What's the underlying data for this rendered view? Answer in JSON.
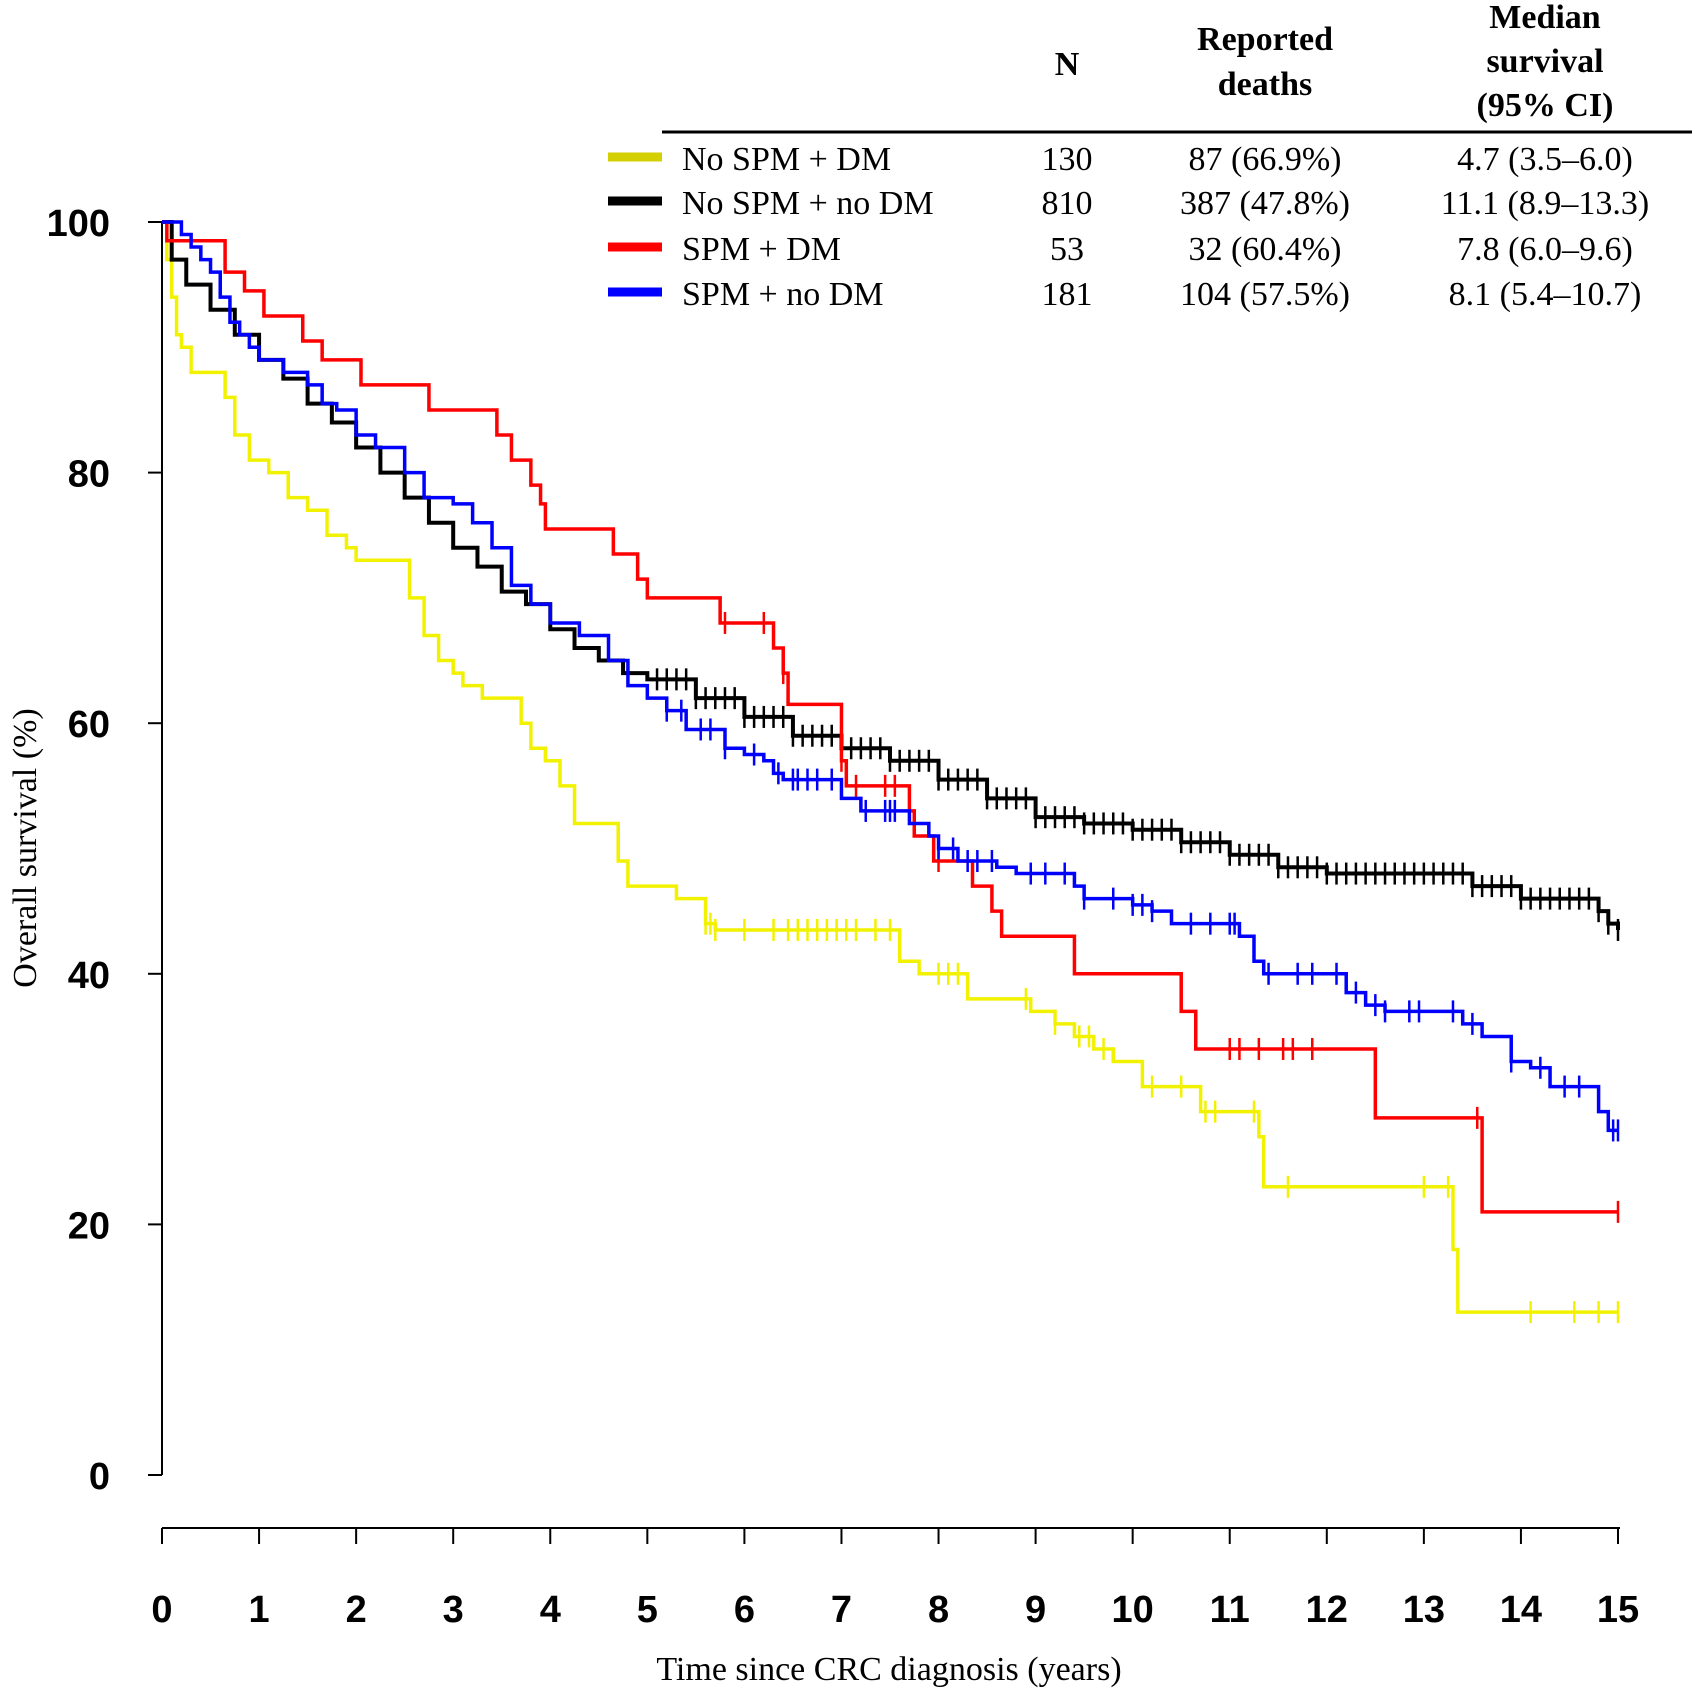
{
  "chart_data": {
    "type": "line",
    "subtype": "kaplan-meier",
    "xlabel": "Time since CRC diagnosis (years)",
    "ylabel": "Overall survival (%)",
    "xlim": [
      0,
      15
    ],
    "ylim": [
      0,
      100
    ],
    "x_ticks": [
      "0",
      "1",
      "2",
      "3",
      "4",
      "5",
      "6",
      "7",
      "8",
      "9",
      "10",
      "11",
      "12",
      "13",
      "14",
      "15"
    ],
    "y_ticks": [
      "0",
      "20",
      "40",
      "60",
      "80",
      "100"
    ],
    "legend_headers": {
      "n": "N",
      "deaths_line1": "Reported",
      "deaths_line2": "deaths",
      "median_line1": "Median",
      "median_line2": "survival",
      "median_line3": "(95% CI)"
    },
    "series": [
      {
        "name": "No SPM + DM",
        "color": "#f2f200",
        "legend_color": "#d4cf00",
        "n": "130",
        "deaths": "87 (66.9%)",
        "median": "4.7 (3.5–6.0)",
        "points": [
          [
            0,
            100
          ],
          [
            0.05,
            97
          ],
          [
            0.1,
            94
          ],
          [
            0.15,
            91
          ],
          [
            0.2,
            90
          ],
          [
            0.3,
            88
          ],
          [
            0.55,
            88
          ],
          [
            0.65,
            86
          ],
          [
            0.75,
            83
          ],
          [
            0.9,
            81
          ],
          [
            1.1,
            80
          ],
          [
            1.3,
            78
          ],
          [
            1.5,
            77
          ],
          [
            1.7,
            75
          ],
          [
            1.9,
            74
          ],
          [
            2.0,
            73
          ],
          [
            2.45,
            73
          ],
          [
            2.55,
            70
          ],
          [
            2.7,
            67
          ],
          [
            2.85,
            65
          ],
          [
            3.0,
            64
          ],
          [
            3.1,
            63
          ],
          [
            3.3,
            62
          ],
          [
            3.6,
            62
          ],
          [
            3.7,
            60
          ],
          [
            3.8,
            58
          ],
          [
            3.95,
            57
          ],
          [
            4.1,
            55
          ],
          [
            4.25,
            52
          ],
          [
            4.6,
            52
          ],
          [
            4.7,
            49
          ],
          [
            4.8,
            47
          ],
          [
            5.0,
            47
          ],
          [
            5.3,
            46
          ],
          [
            5.6,
            44
          ],
          [
            5.7,
            43.5
          ],
          [
            7.4,
            43.5
          ],
          [
            7.6,
            41
          ],
          [
            7.8,
            40
          ],
          [
            8.2,
            40
          ],
          [
            8.3,
            38
          ],
          [
            8.6,
            38
          ],
          [
            8.95,
            37
          ],
          [
            9.2,
            36
          ],
          [
            9.4,
            35
          ],
          [
            9.6,
            34
          ],
          [
            9.8,
            33
          ],
          [
            10.1,
            31
          ],
          [
            10.6,
            31
          ],
          [
            10.7,
            29
          ],
          [
            11.15,
            29
          ],
          [
            11.3,
            27
          ],
          [
            11.35,
            23
          ],
          [
            13.2,
            23
          ],
          [
            13.3,
            18
          ],
          [
            13.35,
            13
          ],
          [
            15.0,
            13
          ]
        ],
        "censor_x": [
          5.6,
          5.65,
          5.7,
          6.0,
          6.3,
          6.45,
          6.55,
          6.65,
          6.75,
          6.85,
          6.95,
          7.05,
          7.15,
          7.35,
          7.5,
          8.0,
          8.1,
          8.2,
          8.9,
          9.2,
          9.45,
          9.55,
          9.7,
          10.2,
          10.5,
          10.75,
          10.85,
          11.25,
          11.6,
          13.0,
          13.25,
          14.1,
          14.55,
          14.8,
          15.0
        ]
      },
      {
        "name": "No SPM + no DM",
        "color": "#000000",
        "legend_color": "#000000",
        "n": "810",
        "deaths": "387 (47.8%)",
        "median": "11.1 (8.9–13.3)",
        "points": [
          [
            0,
            100
          ],
          [
            0.1,
            97
          ],
          [
            0.25,
            95
          ],
          [
            0.5,
            93
          ],
          [
            0.75,
            91
          ],
          [
            1.0,
            89
          ],
          [
            1.25,
            87.5
          ],
          [
            1.5,
            85.5
          ],
          [
            1.75,
            84
          ],
          [
            2.0,
            82
          ],
          [
            2.25,
            80
          ],
          [
            2.5,
            78
          ],
          [
            2.75,
            76
          ],
          [
            3.0,
            74
          ],
          [
            3.25,
            72.5
          ],
          [
            3.5,
            70.5
          ],
          [
            3.75,
            69.5
          ],
          [
            4.0,
            67.5
          ],
          [
            4.25,
            66
          ],
          [
            4.5,
            65
          ],
          [
            4.75,
            64
          ],
          [
            5.0,
            63.5
          ],
          [
            5.5,
            62
          ],
          [
            6.0,
            60.5
          ],
          [
            6.5,
            59
          ],
          [
            7.0,
            58
          ],
          [
            7.5,
            57
          ],
          [
            8.0,
            55.5
          ],
          [
            8.5,
            54
          ],
          [
            9.0,
            52.5
          ],
          [
            9.5,
            52
          ],
          [
            10.0,
            51.5
          ],
          [
            10.5,
            50.5
          ],
          [
            11.0,
            49.5
          ],
          [
            11.5,
            48.5
          ],
          [
            12.0,
            48
          ],
          [
            13.0,
            48
          ],
          [
            13.5,
            47
          ],
          [
            14.0,
            46
          ],
          [
            14.6,
            46
          ],
          [
            14.8,
            45
          ],
          [
            14.9,
            44
          ],
          [
            15.0,
            43.5
          ]
        ],
        "censor_x": [
          5.1,
          5.2,
          5.3,
          5.4,
          5.5,
          5.6,
          5.7,
          5.8,
          5.9,
          6.0,
          6.1,
          6.2,
          6.3,
          6.4,
          6.5,
          6.6,
          6.7,
          6.8,
          6.9,
          7.0,
          7.1,
          7.2,
          7.3,
          7.4,
          7.5,
          7.6,
          7.7,
          7.8,
          7.9,
          8.0,
          8.1,
          8.2,
          8.3,
          8.4,
          8.5,
          8.6,
          8.7,
          8.8,
          8.9,
          9.0,
          9.1,
          9.2,
          9.3,
          9.4,
          9.5,
          9.6,
          9.7,
          9.8,
          9.9,
          10.0,
          10.1,
          10.2,
          10.3,
          10.4,
          10.5,
          10.6,
          10.7,
          10.8,
          10.9,
          11.0,
          11.1,
          11.2,
          11.3,
          11.4,
          11.5,
          11.6,
          11.7,
          11.8,
          11.9,
          12.0,
          12.1,
          12.2,
          12.3,
          12.4,
          12.5,
          12.6,
          12.7,
          12.8,
          12.9,
          13.0,
          13.1,
          13.2,
          13.3,
          13.4,
          13.5,
          13.6,
          13.7,
          13.8,
          13.9,
          14.0,
          14.1,
          14.2,
          14.3,
          14.4,
          14.5,
          14.6,
          14.7,
          14.8,
          14.9,
          15.0
        ]
      },
      {
        "name": "SPM + DM",
        "color": "#ff0000",
        "legend_color": "#ff0000",
        "n": "53",
        "deaths": "32 (60.4%)",
        "median": "7.8 (6.0–9.6)",
        "points": [
          [
            0,
            100
          ],
          [
            0.05,
            98.5
          ],
          [
            0.65,
            98.5
          ],
          [
            0.65,
            96
          ],
          [
            0.85,
            96
          ],
          [
            0.85,
            94.5
          ],
          [
            1.05,
            94.5
          ],
          [
            1.05,
            92.5
          ],
          [
            1.45,
            92.5
          ],
          [
            1.45,
            90.5
          ],
          [
            1.65,
            90.5
          ],
          [
            1.65,
            89
          ],
          [
            2.05,
            89
          ],
          [
            2.05,
            87
          ],
          [
            2.75,
            87
          ],
          [
            2.75,
            85
          ],
          [
            3.45,
            85
          ],
          [
            3.45,
            83
          ],
          [
            3.6,
            83
          ],
          [
            3.6,
            81
          ],
          [
            3.8,
            81
          ],
          [
            3.8,
            79
          ],
          [
            3.9,
            79
          ],
          [
            3.9,
            77.5
          ],
          [
            3.95,
            77.5
          ],
          [
            3.95,
            75.5
          ],
          [
            4.65,
            75.5
          ],
          [
            4.65,
            73.5
          ],
          [
            4.9,
            73.5
          ],
          [
            4.9,
            71.5
          ],
          [
            5.0,
            71.5
          ],
          [
            5.0,
            70
          ],
          [
            5.75,
            70
          ],
          [
            5.75,
            68
          ],
          [
            6.3,
            68
          ],
          [
            6.3,
            66
          ],
          [
            6.4,
            66
          ],
          [
            6.4,
            64
          ],
          [
            6.45,
            64
          ],
          [
            6.45,
            61.5
          ],
          [
            7.0,
            61.5
          ],
          [
            7.0,
            59
          ],
          [
            7.0,
            57
          ],
          [
            7.05,
            57
          ],
          [
            7.05,
            55
          ],
          [
            7.7,
            55
          ],
          [
            7.7,
            53
          ],
          [
            7.75,
            53
          ],
          [
            7.75,
            51
          ],
          [
            7.95,
            51
          ],
          [
            7.95,
            49
          ],
          [
            8.35,
            49
          ],
          [
            8.35,
            47
          ],
          [
            8.55,
            47
          ],
          [
            8.55,
            45
          ],
          [
            8.65,
            45
          ],
          [
            8.65,
            43
          ],
          [
            9.4,
            43
          ],
          [
            9.4,
            40
          ],
          [
            10.5,
            40
          ],
          [
            10.5,
            37
          ],
          [
            10.65,
            37
          ],
          [
            10.65,
            34
          ],
          [
            12.5,
            34
          ],
          [
            12.5,
            28.5
          ],
          [
            13.6,
            28.5
          ],
          [
            13.6,
            21
          ],
          [
            15.0,
            21
          ]
        ],
        "censor_x": [
          5.8,
          6.2,
          6.4,
          7.0,
          7.15,
          7.45,
          7.55,
          8.0,
          11.0,
          11.1,
          11.3,
          11.55,
          11.65,
          11.85,
          13.55,
          15.0
        ]
      },
      {
        "name": "SPM + no DM",
        "color": "#0000ff",
        "legend_color": "#0000ff",
        "n": "181",
        "deaths": "104 (57.5%)",
        "median": "8.1 (5.4–10.7)",
        "points": [
          [
            0,
            100
          ],
          [
            0.1,
            100
          ],
          [
            0.2,
            99
          ],
          [
            0.3,
            98
          ],
          [
            0.4,
            97
          ],
          [
            0.5,
            96
          ],
          [
            0.6,
            94
          ],
          [
            0.7,
            92
          ],
          [
            0.8,
            91
          ],
          [
            0.9,
            90
          ],
          [
            1.0,
            89
          ],
          [
            1.25,
            88
          ],
          [
            1.5,
            87
          ],
          [
            1.65,
            85.5
          ],
          [
            1.8,
            85
          ],
          [
            2.0,
            83
          ],
          [
            2.2,
            82
          ],
          [
            2.5,
            80
          ],
          [
            2.7,
            78
          ],
          [
            3.0,
            77.5
          ],
          [
            3.2,
            76
          ],
          [
            3.4,
            74
          ],
          [
            3.6,
            71
          ],
          [
            3.8,
            69.5
          ],
          [
            4.0,
            68
          ],
          [
            4.3,
            67
          ],
          [
            4.6,
            65
          ],
          [
            4.8,
            63
          ],
          [
            5.0,
            62
          ],
          [
            5.2,
            61
          ],
          [
            5.4,
            59.5
          ],
          [
            5.6,
            59.5
          ],
          [
            5.8,
            58
          ],
          [
            6.0,
            57.5
          ],
          [
            6.2,
            57
          ],
          [
            6.3,
            56
          ],
          [
            6.4,
            55.5
          ],
          [
            6.7,
            55.5
          ],
          [
            7.0,
            54
          ],
          [
            7.2,
            53
          ],
          [
            7.5,
            53
          ],
          [
            7.7,
            52
          ],
          [
            7.9,
            51
          ],
          [
            8.0,
            50
          ],
          [
            8.2,
            49
          ],
          [
            8.6,
            48.5
          ],
          [
            8.8,
            48
          ],
          [
            9.4,
            47
          ],
          [
            9.5,
            46
          ],
          [
            10.0,
            45.5
          ],
          [
            10.2,
            45
          ],
          [
            10.4,
            44
          ],
          [
            10.9,
            44
          ],
          [
            11.1,
            43
          ],
          [
            11.25,
            41
          ],
          [
            11.35,
            40
          ],
          [
            12.0,
            40
          ],
          [
            12.2,
            38.5
          ],
          [
            12.4,
            37.5
          ],
          [
            12.6,
            37
          ],
          [
            13.4,
            36
          ],
          [
            13.6,
            35
          ],
          [
            13.9,
            33
          ],
          [
            14.1,
            32.5
          ],
          [
            14.3,
            31
          ],
          [
            14.6,
            31
          ],
          [
            14.8,
            29
          ],
          [
            14.9,
            27.5
          ],
          [
            15.0,
            27.5
          ]
        ],
        "censor_x": [
          5.2,
          5.35,
          5.55,
          5.65,
          5.8,
          6.1,
          6.35,
          6.5,
          6.55,
          6.65,
          6.75,
          6.9,
          7.25,
          7.45,
          7.5,
          7.55,
          8.0,
          8.15,
          8.3,
          8.4,
          8.55,
          8.95,
          9.1,
          9.3,
          9.5,
          9.8,
          10.0,
          10.1,
          10.2,
          10.6,
          10.8,
          11.0,
          11.05,
          11.4,
          11.7,
          11.85,
          12.1,
          12.3,
          12.5,
          12.6,
          12.85,
          12.95,
          13.3,
          13.5,
          13.9,
          14.2,
          14.45,
          14.6,
          14.95,
          15.0
        ]
      }
    ]
  }
}
